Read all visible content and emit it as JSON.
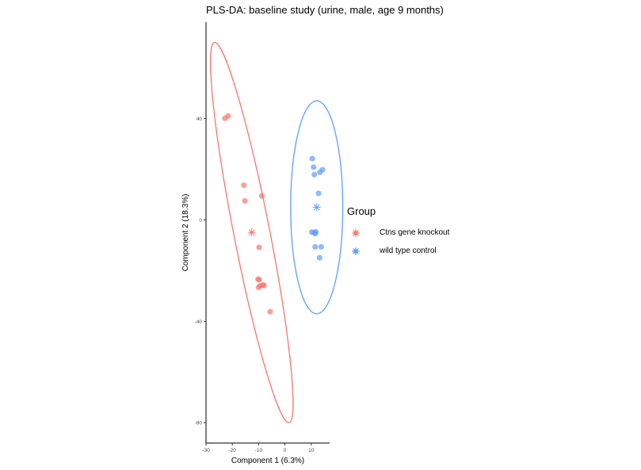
{
  "chart_data": {
    "type": "scatter",
    "title": "PLS-DA: baseline study (urine, male, age 9 months)",
    "xlabel": "Component 1 (6.3%)",
    "ylabel": "Component 2 (18.3%)",
    "xlim": [
      -30,
      17
    ],
    "ylim": [
      -88,
      78
    ],
    "xticks": [
      -30,
      -20,
      -10,
      0,
      10
    ],
    "yticks": [
      -80,
      -40,
      0,
      40
    ],
    "grid": false,
    "legend": {
      "title": "Group",
      "position": "right"
    },
    "series": [
      {
        "name": "Ctns gene knockout",
        "color": "#F8766D",
        "points": [
          [
            -22.8,
            40.1
          ],
          [
            -21.6,
            41.0
          ],
          [
            -15.6,
            13.7
          ],
          [
            -15.2,
            7.5
          ],
          [
            -8.8,
            9.5
          ],
          [
            -9.8,
            -10.8
          ],
          [
            -10.2,
            -23.4
          ],
          [
            -9.8,
            -23.6
          ],
          [
            -8.4,
            -25.7
          ],
          [
            -9.4,
            -26.0
          ],
          [
            -8.0,
            -25.8
          ],
          [
            -10.0,
            -26.6
          ],
          [
            -5.6,
            -36.2
          ]
        ],
        "centroid": [
          -12.6,
          -4.9
        ],
        "ellipse": {
          "center": [
            -12.6,
            -4.9
          ],
          "top": [
            -26.8,
            70.0
          ],
          "bottom": [
            1.6,
            -80.0
          ],
          "minor_half": 3.8
        }
      },
      {
        "name": "wild type control",
        "color": "#619CFF",
        "points": [
          [
            10.4,
            24.2
          ],
          [
            10.9,
            20.8
          ],
          [
            11.2,
            17.9
          ],
          [
            13.3,
            18.8
          ],
          [
            14.3,
            19.8
          ],
          [
            12.8,
            10.5
          ],
          [
            10.2,
            -4.8
          ],
          [
            11.1,
            -5.0
          ],
          [
            11.5,
            -5.4
          ],
          [
            11.8,
            -4.7
          ],
          [
            11.5,
            -10.6
          ],
          [
            13.8,
            -10.6
          ],
          [
            13.2,
            -14.9
          ]
        ],
        "centroid": [
          12.1,
          5.0
        ],
        "ellipse": {
          "center": [
            12.1,
            5.0
          ],
          "top": [
            12.1,
            47.0
          ],
          "bottom": [
            12.1,
            -37.0
          ],
          "minor_half": 5.5
        }
      }
    ]
  }
}
